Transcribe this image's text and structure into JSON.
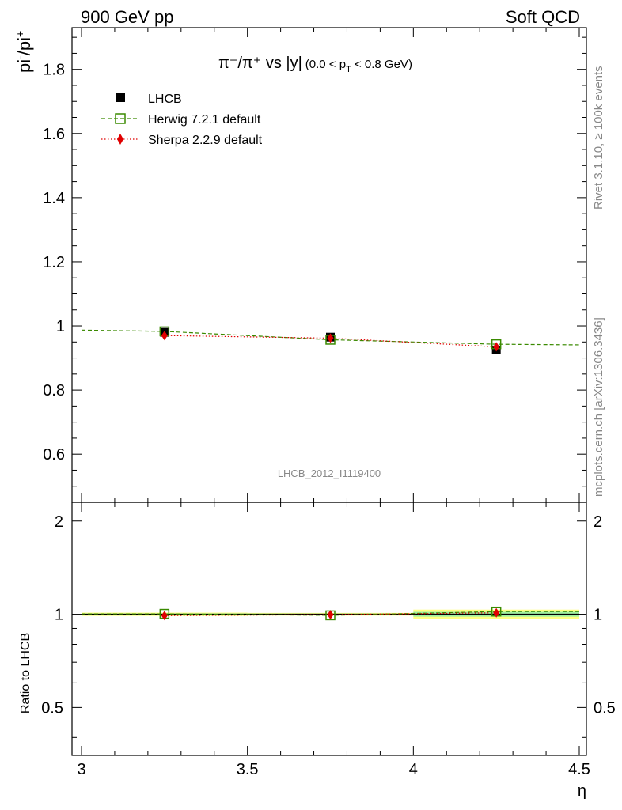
{
  "header": {
    "left": "900 GeV pp",
    "right": "Soft QCD"
  },
  "side_text": {
    "rivet": "Rivet 3.1.10, ≥ 100k events",
    "mcplots": "mcplots.cern.ch [arXiv:1306.3436]"
  },
  "analysis_id": "LHCB_2012_I1119400",
  "colors": {
    "data": "#000000",
    "herwig": "#3a8a00",
    "sherpa": "#e00000",
    "band_yellow": "#ffff80",
    "band_green": "#a0f0a0"
  },
  "chart_data": [
    {
      "type": "scatter",
      "title_main": "π⁻/π⁺ vs |y|",
      "title_sub": "(0.0 < p",
      "title_sub_T": "T",
      "title_sub_end": " < 0.8 GeV)",
      "ylabel_base": "pi",
      "ylabel_sup1": "-",
      "ylabel_mid": "/pi",
      "ylabel_sup2": "+",
      "xlim": [
        3.0,
        4.5
      ],
      "ylim": [
        0.45,
        1.93
      ],
      "yticks": [
        0.6,
        0.8,
        1.0,
        1.2,
        1.4,
        1.6,
        1.8
      ],
      "ytick_labels": [
        "0.6",
        "0.8",
        "1",
        "1.2",
        "1.4",
        "1.6",
        "1.8"
      ],
      "legend_position": "top-left",
      "series": [
        {
          "name": "LHCB",
          "marker": "square-filled",
          "x": [
            3.25,
            3.75,
            4.25
          ],
          "y": [
            0.98,
            0.965,
            0.925
          ]
        },
        {
          "name": "Herwig 7.2.1 default",
          "marker": "square-open",
          "line": "dashed",
          "x": [
            3.25,
            3.75,
            4.25
          ],
          "y": [
            0.983,
            0.957,
            0.943
          ]
        },
        {
          "name": "Sherpa 2.2.9 default",
          "marker": "diamond",
          "line": "dotted",
          "x": [
            3.25,
            3.75,
            4.25
          ],
          "y": [
            0.97,
            0.962,
            0.935
          ]
        }
      ]
    },
    {
      "type": "scatter",
      "ylabel": "Ratio to LHCB",
      "xlabel": "η",
      "xlim": [
        3.0,
        4.5
      ],
      "xticks": [
        3.0,
        3.5,
        4.0,
        4.5
      ],
      "xtick_labels": [
        "3",
        "3.5",
        "4",
        "4.5"
      ],
      "ylim": [
        0.35,
        2.3
      ],
      "y_scale": "log",
      "yticks": [
        0.5,
        1.0,
        2.0
      ],
      "ytick_labels": [
        "0.5",
        "1",
        "2"
      ],
      "band": {
        "x_edges": [
          3.0,
          3.5,
          4.0,
          4.5
        ],
        "yellow_half": [
          0.012,
          0.01,
          0.035
        ],
        "green_half": [
          0.006,
          0.005,
          0.018
        ]
      },
      "series": [
        {
          "name": "Herwig 7.2.1 default",
          "x": [
            3.25,
            3.75,
            4.25
          ],
          "y": [
            1.003,
            0.992,
            1.02
          ]
        },
        {
          "name": "Sherpa 2.2.9 default",
          "x": [
            3.25,
            3.75,
            4.25
          ],
          "y": [
            0.99,
            0.997,
            1.011
          ]
        }
      ]
    }
  ]
}
